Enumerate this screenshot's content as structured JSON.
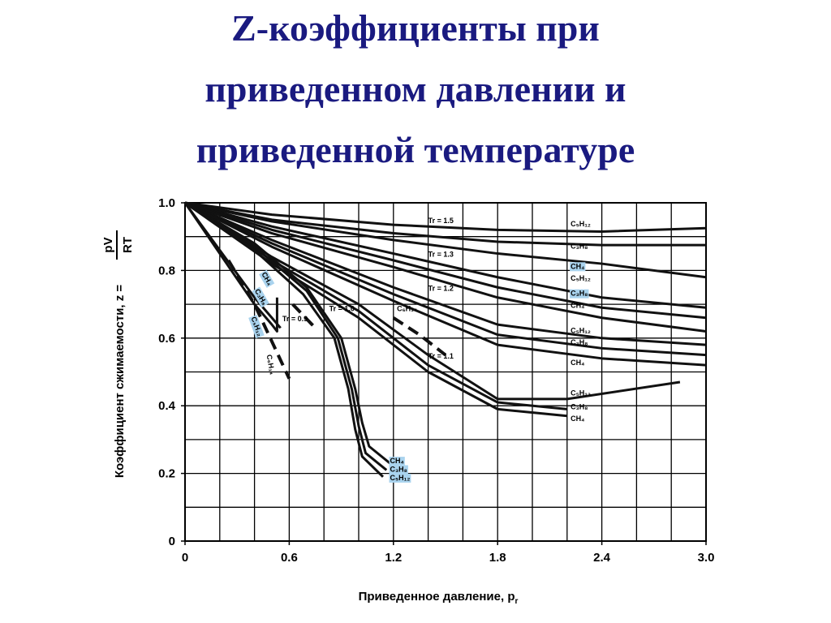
{
  "chart_data": {
    "type": "line",
    "title": [
      "Z-коэффициенты при",
      "приведенном давлении и",
      "приведенной температуре"
    ],
    "xlabel": "Приведенное давление, p",
    "xlabel_sub": "r",
    "ylabel": "Коэффициент сжимаемости, z =",
    "ylabel_fraction": {
      "numerator": "pV",
      "denominator": "RT"
    },
    "xlim": [
      0,
      3
    ],
    "ylim": [
      0,
      1
    ],
    "xticks": [
      0,
      0.6,
      1.2,
      1.8,
      2.4,
      {
        "value": 3,
        "label": "3.0"
      }
    ],
    "yticks": [
      0,
      0.2,
      0.4,
      0.6,
      0.8,
      {
        "value": 1,
        "label": "1.0"
      }
    ],
    "grid": {
      "x": 0.2,
      "y": 0.1
    },
    "series": [
      {
        "color": "#111111",
        "x": [
          0,
          0.5,
          1.2,
          1.8,
          2.4,
          3.0
        ],
        "values": [
          1,
          0.965,
          0.935,
          0.92,
          0.915,
          0.925
        ]
      },
      {
        "color": "#111111",
        "x": [
          0,
          0.5,
          1.2,
          1.8,
          2.4,
          3.0
        ],
        "values": [
          1,
          0.95,
          0.91,
          0.885,
          0.875,
          0.875
        ]
      },
      {
        "color": "#111111",
        "x": [
          0,
          0.5,
          1.2,
          1.8,
          2.4,
          3.0
        ],
        "values": [
          1,
          0.945,
          0.89,
          0.85,
          0.82,
          0.78
        ]
      },
      {
        "color": "#111111",
        "x": [
          0,
          0.5,
          1.2,
          1.8,
          2.4,
          3.0
        ],
        "values": [
          1,
          0.93,
          0.85,
          0.78,
          0.72,
          0.69
        ]
      },
      {
        "color": "#111111",
        "x": [
          0,
          0.5,
          1.2,
          1.8,
          2.4,
          3.0
        ],
        "values": [
          1,
          0.92,
          0.83,
          0.75,
          0.69,
          0.66
        ]
      },
      {
        "color": "#111111",
        "x": [
          0,
          0.5,
          1.2,
          1.8,
          2.4,
          3.0
        ],
        "values": [
          1,
          0.91,
          0.81,
          0.72,
          0.66,
          0.62
        ]
      },
      {
        "color": "#111111",
        "x": [
          0,
          0.5,
          1.2,
          1.8,
          2.4,
          3.0
        ],
        "values": [
          1,
          0.89,
          0.75,
          0.64,
          0.6,
          0.58
        ]
      },
      {
        "color": "#111111",
        "x": [
          0,
          0.5,
          1.2,
          1.8,
          2.4,
          3.0
        ],
        "values": [
          1,
          0.88,
          0.73,
          0.61,
          0.57,
          0.55
        ]
      },
      {
        "color": "#111111",
        "x": [
          0,
          0.5,
          1.2,
          1.8,
          2.4,
          3.0
        ],
        "values": [
          1,
          0.87,
          0.71,
          0.58,
          0.54,
          0.52
        ]
      },
      {
        "color": "#111111",
        "x": [
          0,
          0.5,
          1.0,
          1.4,
          1.8,
          2.2,
          2.85
        ],
        "values": [
          1,
          0.84,
          0.7,
          0.55,
          0.42,
          0.42,
          0.47
        ]
      },
      {
        "color": "#111111",
        "x": [
          0,
          0.5,
          1.0,
          1.4,
          1.8,
          2.2
        ],
        "values": [
          1,
          0.83,
          0.68,
          0.52,
          0.41,
          0.39
        ]
      },
      {
        "color": "#111111",
        "x": [
          0,
          0.5,
          1.0,
          1.4,
          1.8,
          2.2
        ],
        "values": [
          1,
          0.82,
          0.66,
          0.5,
          0.39,
          0.37
        ]
      },
      {
        "color": "#111111",
        "x": [
          0,
          0.4,
          0.7,
          0.9,
          0.98,
          1.02,
          1.06,
          1.18
        ],
        "values": [
          1,
          0.88,
          0.75,
          0.6,
          0.45,
          0.35,
          0.28,
          0.23
        ]
      },
      {
        "color": "#111111",
        "x": [
          0,
          0.4,
          0.7,
          0.88,
          0.96,
          1.0,
          1.04,
          1.16
        ],
        "values": [
          1,
          0.87,
          0.74,
          0.6,
          0.45,
          0.34,
          0.26,
          0.21
        ]
      },
      {
        "color": "#111111",
        "x": [
          0,
          0.4,
          0.68,
          0.86,
          0.94,
          0.98,
          1.02,
          1.14
        ],
        "values": [
          1,
          0.86,
          0.73,
          0.6,
          0.45,
          0.33,
          0.25,
          0.19
        ]
      },
      {
        "color": "#111111",
        "x": [
          0,
          0.2,
          0.4,
          0.5,
          0.55
        ],
        "values": [
          1,
          0.86,
          0.72,
          0.66,
          0.63
        ]
      },
      {
        "color": "#111111",
        "x": [
          0,
          0.2,
          0.4,
          0.5,
          0.53,
          0.53
        ],
        "values": [
          1,
          0.85,
          0.7,
          0.64,
          0.62,
          0.72
        ]
      },
      {
        "color": "#111111",
        "dash": true,
        "x": [
          0.25,
          0.4,
          0.6
        ],
        "values": [
          0.83,
          0.7,
          0.48
        ]
      },
      {
        "color": "#111111",
        "dash": true,
        "x": [
          0.62,
          0.75
        ],
        "values": [
          0.7,
          0.63
        ]
      },
      {
        "color": "#111111",
        "dash": true,
        "x": [
          1.2,
          1.35,
          1.5
        ],
        "values": [
          0.66,
          0.61,
          0.55
        ]
      }
    ],
    "annotations": [
      {
        "text": "Tr = 1.5",
        "x": 1.4,
        "y": 0.94
      },
      {
        "text": "C₅H₁₂",
        "x": 2.22,
        "y": 0.93
      },
      {
        "text": "C₃H₈",
        "x": 2.22,
        "y": 0.865
      },
      {
        "text": "CH₄",
        "x": 2.22,
        "y": 0.805,
        "highlight": true
      },
      {
        "text": "Tr = 1.3",
        "x": 1.4,
        "y": 0.84
      },
      {
        "text": "C₅H₁₂",
        "x": 2.22,
        "y": 0.77
      },
      {
        "text": "C₃H₈",
        "x": 2.22,
        "y": 0.725,
        "highlight": true
      },
      {
        "text": "CH₄",
        "x": 2.22,
        "y": 0.69
      },
      {
        "text": "Tr = 1.2",
        "x": 1.4,
        "y": 0.74
      },
      {
        "text": "C₅H₁₂",
        "x": 2.22,
        "y": 0.615
      },
      {
        "text": "C₃H₈",
        "x": 2.22,
        "y": 0.58
      },
      {
        "text": "CH₄",
        "x": 2.22,
        "y": 0.52
      },
      {
        "text": "Tr = 1.1",
        "x": 1.4,
        "y": 0.54
      },
      {
        "text": "C₅H₁₂",
        "x": 2.22,
        "y": 0.43
      },
      {
        "text": "C₃H₈",
        "x": 2.22,
        "y": 0.39
      },
      {
        "text": "CH₄",
        "x": 2.22,
        "y": 0.355
      },
      {
        "text": "Tr = 1.0",
        "x": 0.83,
        "y": 0.68
      },
      {
        "text": "C₆H₁₄",
        "x": 1.22,
        "y": 0.68
      },
      {
        "text": "Tr = 0.9",
        "x": 0.56,
        "y": 0.65
      },
      {
        "text": "CH₄",
        "x": 1.18,
        "y": 0.23,
        "highlight": true
      },
      {
        "text": "C₃H₈",
        "x": 1.18,
        "y": 0.205,
        "highlight": true
      },
      {
        "text": "C₅H₁₂",
        "x": 1.18,
        "y": 0.18,
        "highlight": true
      },
      {
        "text": "CH₄",
        "x": 0.44,
        "y": 0.79,
        "highlight": true,
        "rotate": 60
      },
      {
        "text": "C₃H₈",
        "x": 0.4,
        "y": 0.74,
        "highlight": true,
        "rotate": 60
      },
      {
        "text": "C₅H₁₂",
        "x": 0.38,
        "y": 0.66,
        "highlight": true,
        "rotate": 70
      },
      {
        "text": "C₆H₁₄",
        "x": 0.47,
        "y": 0.55,
        "rotate": 80
      }
    ]
  }
}
